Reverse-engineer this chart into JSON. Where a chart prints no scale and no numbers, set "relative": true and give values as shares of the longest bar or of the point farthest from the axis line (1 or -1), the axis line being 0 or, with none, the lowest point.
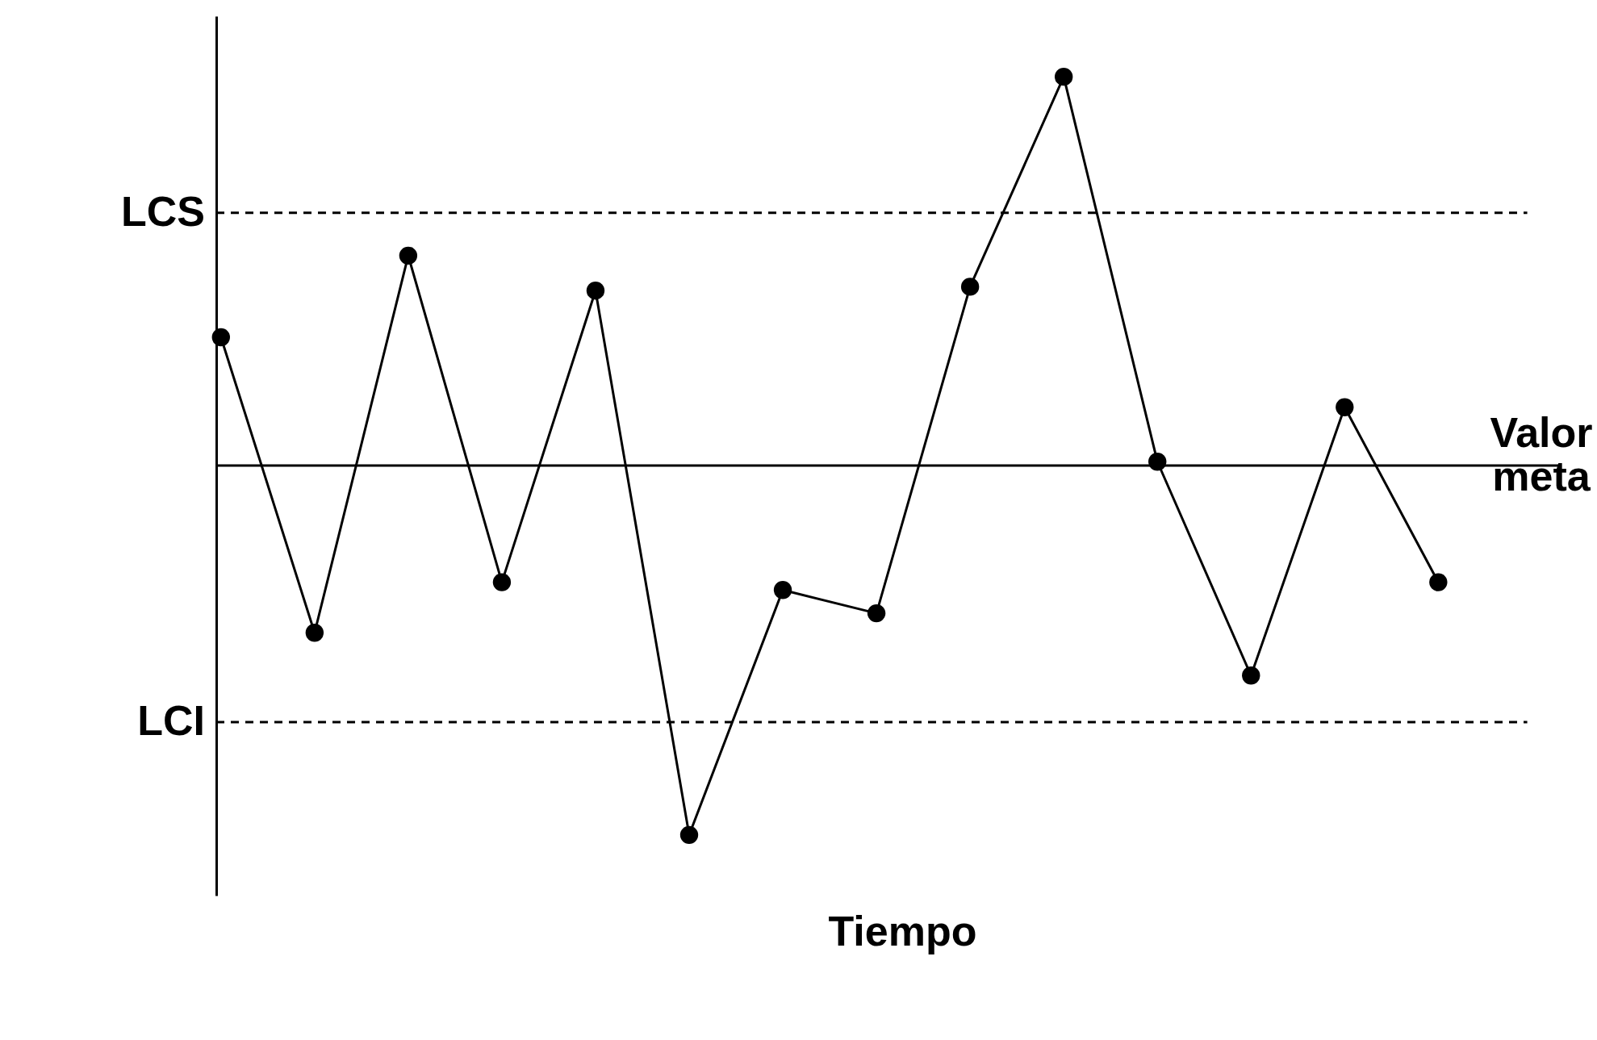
{
  "chart_data": {
    "type": "line",
    "relative": true,
    "xlabel": "Tiempo",
    "categories": [
      null,
      null,
      null,
      null,
      null,
      null,
      null,
      null,
      null,
      null,
      null,
      null,
      null,
      null
    ],
    "series": [
      {
        "color": "#000000",
        "values": [
          0.33,
          -0.43,
          0.54,
          -0.3,
          0.45,
          -0.95,
          -0.32,
          -0.38,
          0.46,
          1,
          0.01,
          -0.54,
          0.15,
          -0.3
        ]
      }
    ],
    "ref_lines": [
      {
        "axis": "y",
        "value": 0.65,
        "label": "LCS",
        "line_style": "dashed",
        "color": "#000000"
      },
      {
        "axis": "y",
        "value": 0,
        "label": "Valor meta",
        "line_style": "solid",
        "color": "#000000"
      },
      {
        "axis": "y",
        "value": -0.66,
        "label": "LCI",
        "line_style": "dashed",
        "color": "#000000"
      }
    ],
    "marker": "circle",
    "line_style": "solid",
    "grid": false
  }
}
